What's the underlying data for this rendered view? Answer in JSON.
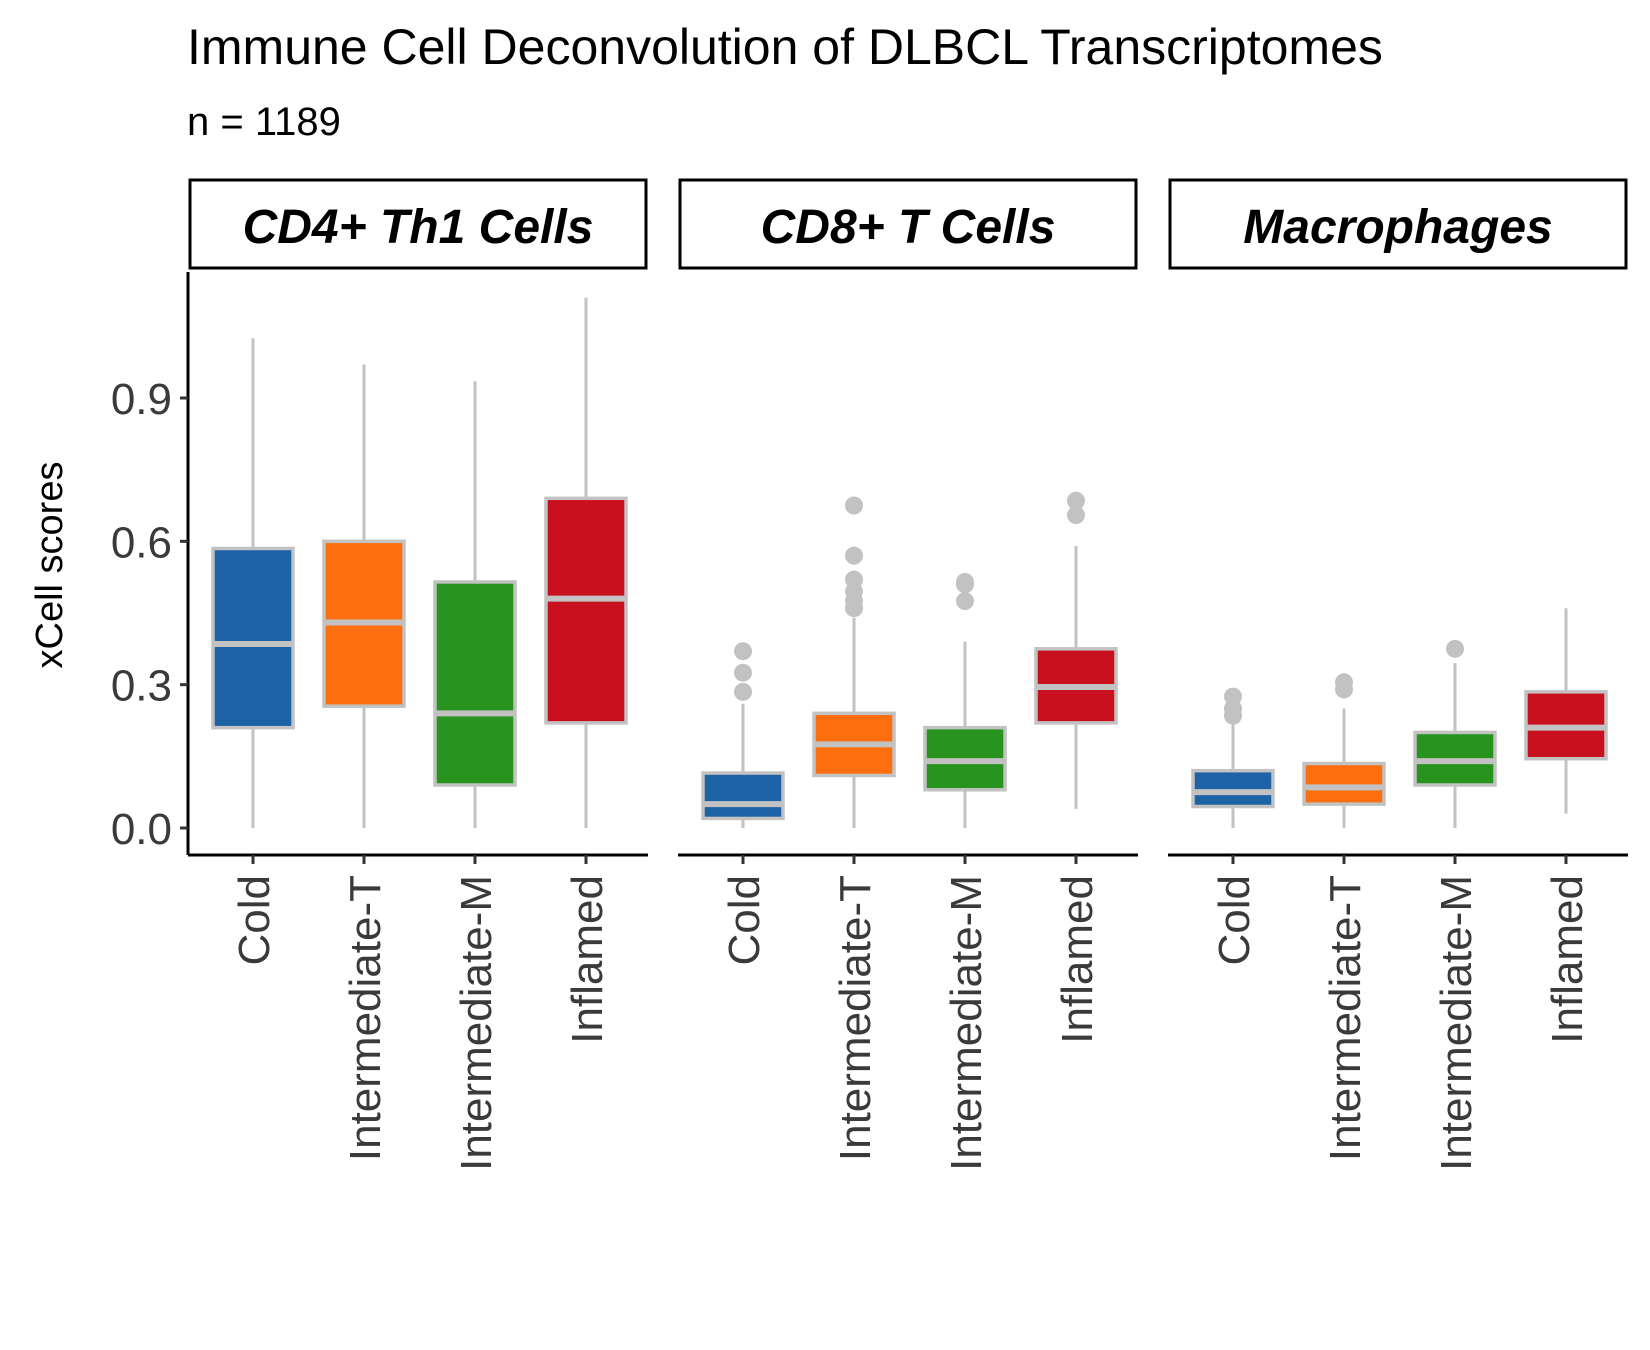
{
  "title": "Immune Cell Deconvolution of DLBCL Transcriptomes",
  "subtitle": "n = 1189",
  "colors": {
    "Cold": "#1c62a5",
    "Intermediate-T": "#fd6e0e",
    "Intermediate-M": "#29931f",
    "Inflamed": "#c8101f",
    "box_outline": "#c2c2c2"
  },
  "chart_data": {
    "type": "boxplot",
    "ylabel": "xCell scores",
    "ylim": [
      -0.05,
      1.12
    ],
    "yticks": [
      "0.0",
      "0.3",
      "0.6",
      "0.9"
    ],
    "ytick_values": [
      0.0,
      0.3,
      0.6,
      0.9
    ],
    "categories": [
      "Cold",
      "Intermediate-T",
      "Intermediate-M",
      "Inflamed"
    ],
    "panels": [
      {
        "name": "CD4+ Th1 Cells",
        "boxes": [
          {
            "category": "Cold",
            "whisker_low": 0.0,
            "q1": 0.21,
            "median": 0.385,
            "q3": 0.585,
            "whisker_high": 1.025,
            "outliers": []
          },
          {
            "category": "Intermediate-T",
            "whisker_low": 0.0,
            "q1": 0.255,
            "median": 0.43,
            "q3": 0.6,
            "whisker_high": 0.97,
            "outliers": []
          },
          {
            "category": "Intermediate-M",
            "whisker_low": 0.0,
            "q1": 0.09,
            "median": 0.24,
            "q3": 0.515,
            "whisker_high": 0.935,
            "outliers": []
          },
          {
            "category": "Inflamed",
            "whisker_low": 0.0,
            "q1": 0.22,
            "median": 0.48,
            "q3": 0.69,
            "whisker_high": 1.11,
            "outliers": []
          }
        ]
      },
      {
        "name": "CD8+ T Cells",
        "boxes": [
          {
            "category": "Cold",
            "whisker_low": 0.0,
            "q1": 0.02,
            "median": 0.05,
            "q3": 0.115,
            "whisker_high": 0.26,
            "outliers": [
              0.285,
              0.325,
              0.37
            ]
          },
          {
            "category": "Intermediate-T",
            "whisker_low": 0.0,
            "q1": 0.11,
            "median": 0.175,
            "q3": 0.24,
            "whisker_high": 0.44,
            "outliers": [
              0.46,
              0.475,
              0.495,
              0.52,
              0.57,
              0.675
            ]
          },
          {
            "category": "Intermediate-M",
            "whisker_low": 0.0,
            "q1": 0.08,
            "median": 0.14,
            "q3": 0.21,
            "whisker_high": 0.39,
            "outliers": [
              0.475,
              0.51,
              0.515
            ]
          },
          {
            "category": "Inflamed",
            "whisker_low": 0.04,
            "q1": 0.22,
            "median": 0.295,
            "q3": 0.375,
            "whisker_high": 0.59,
            "outliers": [
              0.655,
              0.685
            ]
          }
        ]
      },
      {
        "name": "Macrophages",
        "boxes": [
          {
            "category": "Cold",
            "whisker_low": 0.0,
            "q1": 0.045,
            "median": 0.075,
            "q3": 0.12,
            "whisker_high": 0.22,
            "outliers": [
              0.235,
              0.25,
              0.275
            ]
          },
          {
            "category": "Intermediate-T",
            "whisker_low": 0.0,
            "q1": 0.05,
            "median": 0.085,
            "q3": 0.135,
            "whisker_high": 0.25,
            "outliers": [
              0.29,
              0.305
            ]
          },
          {
            "category": "Intermediate-M",
            "whisker_low": 0.0,
            "q1": 0.09,
            "median": 0.14,
            "q3": 0.2,
            "whisker_high": 0.345,
            "outliers": [
              0.375
            ]
          },
          {
            "category": "Inflamed",
            "whisker_low": 0.03,
            "q1": 0.145,
            "median": 0.21,
            "q3": 0.285,
            "whisker_high": 0.46,
            "outliers": []
          }
        ]
      }
    ]
  }
}
